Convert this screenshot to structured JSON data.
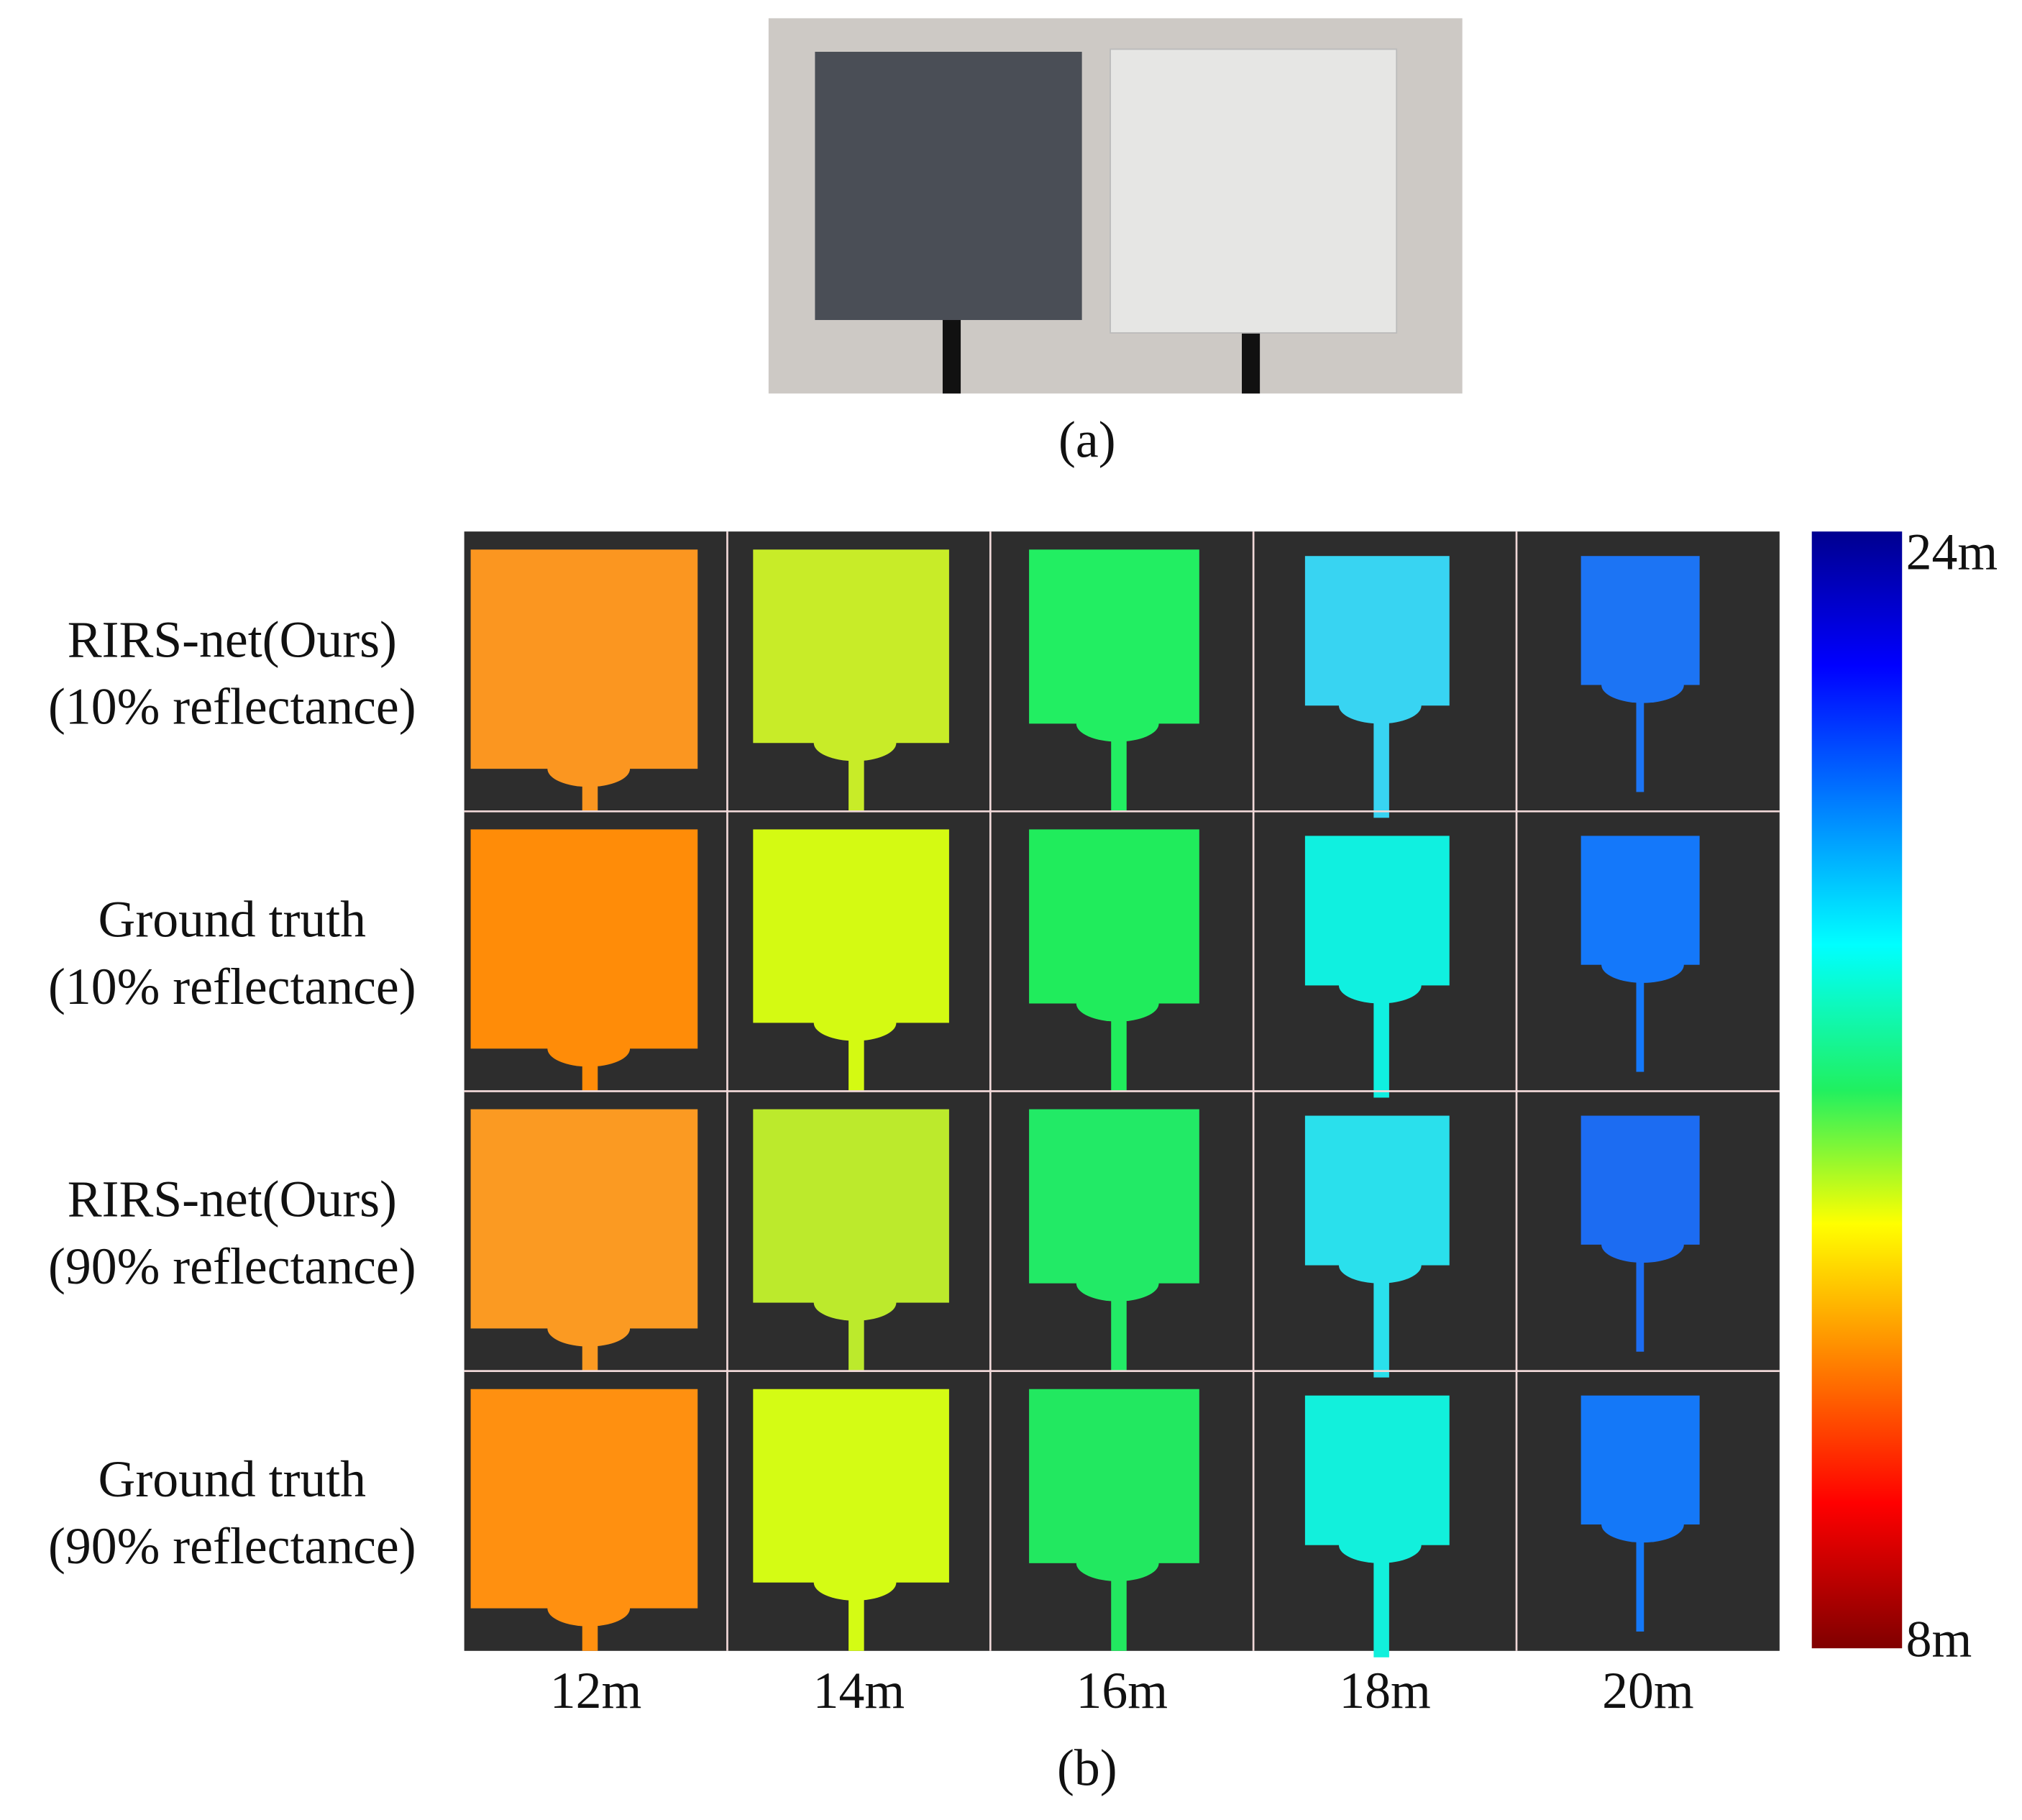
{
  "figure": {
    "panel_a": {
      "label": "(a)"
    },
    "panel_b": {
      "label": "(b)",
      "rows": [
        [
          "RIRS-net(Ours)",
          "(10% reflectance)"
        ],
        [
          "Ground truth",
          "(10% reflectance)"
        ],
        [
          "RIRS-net(Ours)",
          "(90% reflectance)"
        ],
        [
          "Ground truth",
          "(90% reflectance)"
        ]
      ],
      "columns": [
        "12m",
        "14m",
        "16m",
        "18m",
        "20m"
      ],
      "colorbar": {
        "top": "24m",
        "bottom": "8m"
      }
    }
  }
}
